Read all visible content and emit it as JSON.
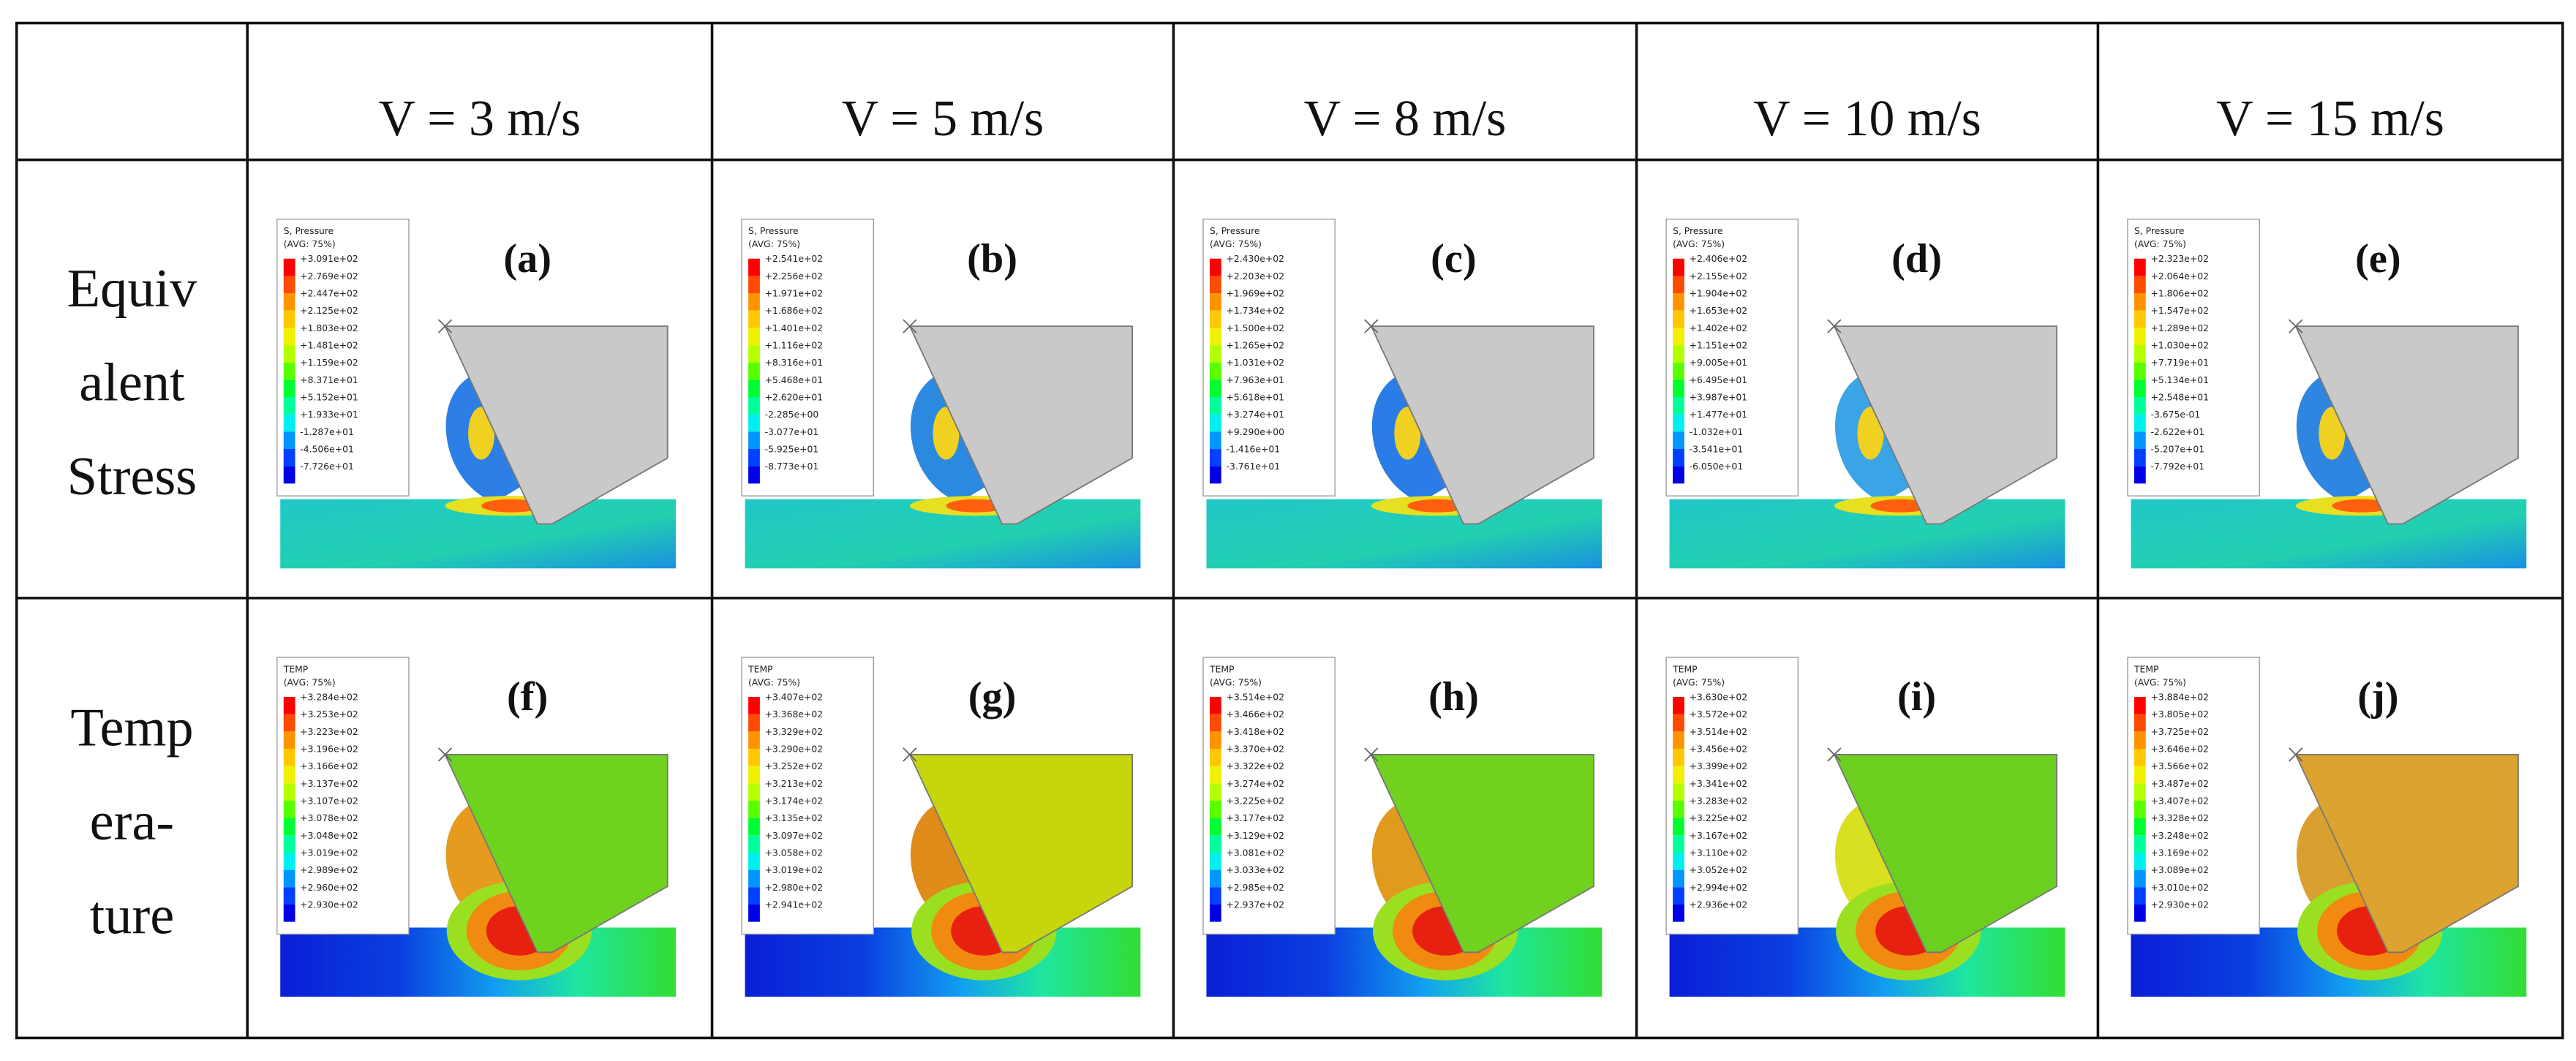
{
  "header": {
    "columns": [
      "V = 3 m/s",
      "V = 5 m/s",
      "V = 8 m/s",
      "V = 10 m/s",
      "V = 15 m/s"
    ]
  },
  "rows": [
    {
      "label_lines": [
        "Equiv",
        "alent",
        "Stress"
      ],
      "panels": [
        {
          "label": "(a)",
          "legend_title": "S, Pressure",
          "legend_subtitle": "(AVG: 75%)",
          "legend_values": [
            "+3.091e+02",
            "+2.769e+02",
            "+2.447e+02",
            "+2.125e+02",
            "+1.803e+02",
            "+1.481e+02",
            "+1.159e+02",
            "+8.371e+01",
            "+5.152e+01",
            "+1.933e+01",
            "-1.287e+01",
            "-4.506e+01",
            "-7.726e+01"
          ]
        },
        {
          "label": "(b)",
          "legend_title": "S, Pressure",
          "legend_subtitle": "(AVG: 75%)",
          "legend_values": [
            "+2.541e+02",
            "+2.256e+02",
            "+1.971e+02",
            "+1.686e+02",
            "+1.401e+02",
            "+1.116e+02",
            "+8.316e+01",
            "+5.468e+01",
            "+2.620e+01",
            "-2.285e+00",
            "-3.077e+01",
            "-5.925e+01",
            "-8.773e+01"
          ]
        },
        {
          "label": "(c)",
          "legend_title": "S, Pressure",
          "legend_subtitle": "(AVG: 75%)",
          "legend_values": [
            "+2.430e+02",
            "+2.203e+02",
            "+1.969e+02",
            "+1.734e+02",
            "+1.500e+02",
            "+1.265e+02",
            "+1.031e+02",
            "+7.963e+01",
            "+5.618e+01",
            "+3.274e+01",
            "+9.290e+00",
            "-1.416e+01",
            "-3.761e+01"
          ]
        },
        {
          "label": "(d)",
          "legend_title": "S, Pressure",
          "legend_subtitle": "(AVG: 75%)",
          "legend_values": [
            "+2.406e+02",
            "+2.155e+02",
            "+1.904e+02",
            "+1.653e+02",
            "+1.402e+02",
            "+1.151e+02",
            "+9.005e+01",
            "+6.495e+01",
            "+3.987e+01",
            "+1.477e+01",
            "-1.032e+01",
            "-3.541e+01",
            "-6.050e+01"
          ]
        },
        {
          "label": "(e)",
          "legend_title": "S, Pressure",
          "legend_subtitle": "(AVG: 75%)",
          "legend_values": [
            "+2.323e+02",
            "+2.064e+02",
            "+1.806e+02",
            "+1.547e+02",
            "+1.289e+02",
            "+1.030e+02",
            "+7.719e+01",
            "+5.134e+01",
            "+2.548e+01",
            "-3.675e-01",
            "-2.622e+01",
            "-5.207e+01",
            "-7.792e+01"
          ]
        }
      ]
    },
    {
      "label_lines": [
        "Temp",
        "era-",
        "ture"
      ],
      "panels": [
        {
          "label": "(f)",
          "legend_title": "TEMP",
          "legend_subtitle": "(AVG: 75%)",
          "legend_values": [
            "+3.284e+02",
            "+3.253e+02",
            "+3.223e+02",
            "+3.196e+02",
            "+3.166e+02",
            "+3.137e+02",
            "+3.107e+02",
            "+3.078e+02",
            "+3.048e+02",
            "+3.019e+02",
            "+2.989e+02",
            "+2.960e+02",
            "+2.930e+02"
          ]
        },
        {
          "label": "(g)",
          "legend_title": "TEMP",
          "legend_subtitle": "(AVG: 75%)",
          "legend_values": [
            "+3.407e+02",
            "+3.368e+02",
            "+3.329e+02",
            "+3.290e+02",
            "+3.252e+02",
            "+3.213e+02",
            "+3.174e+02",
            "+3.135e+02",
            "+3.097e+02",
            "+3.058e+02",
            "+3.019e+02",
            "+2.980e+02",
            "+2.941e+02"
          ]
        },
        {
          "label": "(h)",
          "legend_title": "TEMP",
          "legend_subtitle": "(AVG: 75%)",
          "legend_values": [
            "+3.514e+02",
            "+3.466e+02",
            "+3.418e+02",
            "+3.370e+02",
            "+3.322e+02",
            "+3.274e+02",
            "+3.225e+02",
            "+3.177e+02",
            "+3.129e+02",
            "+3.081e+02",
            "+3.033e+02",
            "+2.985e+02",
            "+2.937e+02"
          ]
        },
        {
          "label": "(i)",
          "legend_title": "TEMP",
          "legend_subtitle": "(AVG: 75%)",
          "legend_values": [
            "+3.630e+02",
            "+3.572e+02",
            "+3.514e+02",
            "+3.456e+02",
            "+3.399e+02",
            "+3.341e+02",
            "+3.283e+02",
            "+3.225e+02",
            "+3.167e+02",
            "+3.110e+02",
            "+3.052e+02",
            "+2.994e+02",
            "+2.936e+02"
          ]
        },
        {
          "label": "(j)",
          "legend_title": "TEMP",
          "legend_subtitle": "(AVG: 75%)",
          "legend_values": [
            "+3.884e+02",
            "+3.805e+02",
            "+3.725e+02",
            "+3.646e+02",
            "+3.566e+02",
            "+3.487e+02",
            "+3.407e+02",
            "+3.328e+02",
            "+3.248e+02",
            "+3.169e+02",
            "+3.089e+02",
            "+3.010e+02",
            "+2.930e+02"
          ]
        }
      ]
    }
  ]
}
